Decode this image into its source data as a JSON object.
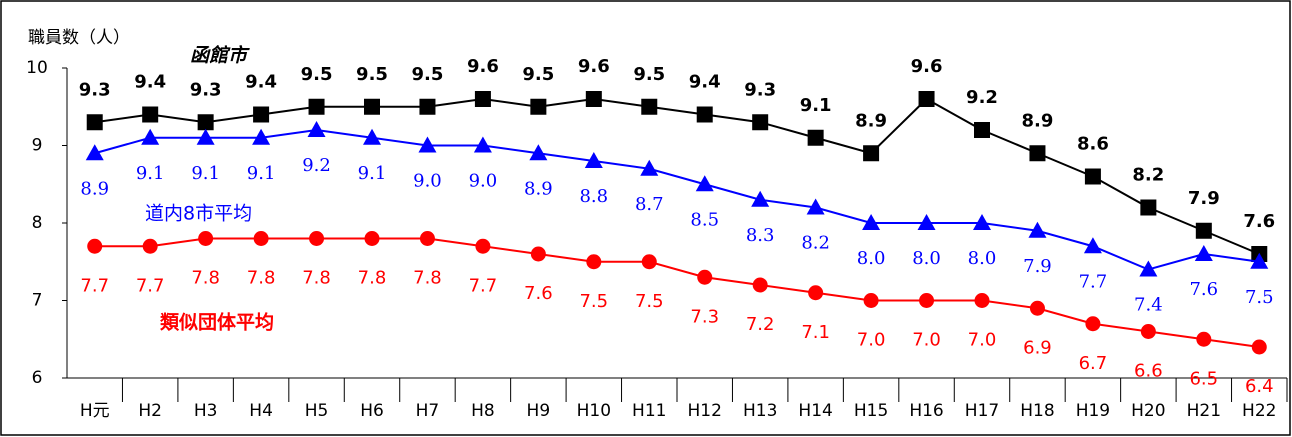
{
  "chart_data": {
    "type": "line",
    "y_label": "職員数（人）",
    "categories": [
      "H元",
      "H2",
      "H3",
      "H4",
      "H5",
      "H6",
      "H7",
      "H8",
      "H9",
      "H10",
      "H11",
      "H12",
      "H13",
      "H14",
      "H15",
      "H16",
      "H17",
      "H18",
      "H19",
      "H20",
      "H21",
      "H22"
    ],
    "ylim": [
      6,
      10
    ],
    "yticks": [
      6,
      7,
      8,
      9,
      10
    ],
    "series": [
      {
        "name": "函館市",
        "color": "#000000",
        "marker": "square",
        "values": [
          9.3,
          9.4,
          9.3,
          9.4,
          9.5,
          9.5,
          9.5,
          9.6,
          9.5,
          9.6,
          9.5,
          9.4,
          9.3,
          9.1,
          8.9,
          9.6,
          9.2,
          8.9,
          8.6,
          8.2,
          7.9,
          7.6
        ],
        "value_labels": [
          "9.3",
          "9.4",
          "9.3",
          "9.4",
          "9.5",
          "9.5",
          "9.5",
          "9.6",
          "9.5",
          "9.6",
          "9.5",
          "9.4",
          "9.3",
          "9.1",
          "8.9",
          "9.6",
          "9.2",
          "8.9",
          "8.6",
          "8.2",
          "7.9",
          "7.6"
        ]
      },
      {
        "name": "道内8市平均",
        "color": "#0000ff",
        "marker": "triangle",
        "values": [
          8.9,
          9.1,
          9.1,
          9.1,
          9.2,
          9.1,
          9.0,
          9.0,
          8.9,
          8.8,
          8.7,
          8.5,
          8.3,
          8.2,
          8.0,
          8.0,
          8.0,
          7.9,
          7.7,
          7.4,
          7.6,
          7.5
        ],
        "value_labels": [
          "8.9",
          "9.1",
          "9.1",
          "9.1",
          "9.2",
          "9.1",
          "9.0",
          "9.0",
          "8.9",
          "8.8",
          "8.7",
          "8.5",
          "8.3",
          "8.2",
          "8.0",
          "8.0",
          "8.0",
          "7.9",
          "7.7",
          "7.4",
          "7.6",
          "7.5"
        ]
      },
      {
        "name": "類似団体平均",
        "color": "#ff0000",
        "marker": "circle",
        "values": [
          7.7,
          7.7,
          7.8,
          7.8,
          7.8,
          7.8,
          7.8,
          7.7,
          7.6,
          7.5,
          7.5,
          7.3,
          7.2,
          7.1,
          7.0,
          7.0,
          7.0,
          6.9,
          6.7,
          6.6,
          6.5,
          6.4
        ],
        "value_labels": [
          "7.7",
          "7.7",
          "7.8",
          "7.8",
          "7.8",
          "7.8",
          "7.8",
          "7.7",
          "7.6",
          "7.5",
          "7.5",
          "7.3",
          "7.2",
          "7.1",
          "7.0",
          "7.0",
          "7.0",
          "6.9",
          "6.7",
          "6.6",
          "6.5",
          "6.4"
        ]
      }
    ]
  }
}
